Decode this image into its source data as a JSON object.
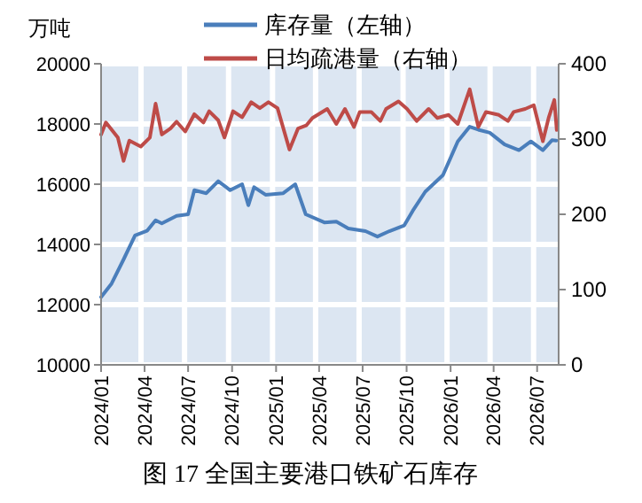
{
  "chart_data": {
    "type": "line",
    "title": "图 17 全国主要港口铁矿石库存",
    "ylabel": "万吨",
    "legend": "top",
    "grid": true,
    "xlim": [
      "2024-01-01",
      "2026-08-15"
    ],
    "xticks": [
      {
        "value": "2024-01",
        "label": "2024/01"
      },
      {
        "value": "2024-04",
        "label": "2024/04"
      },
      {
        "value": "2024-07",
        "label": "2024/07"
      },
      {
        "value": "2024-10",
        "label": "2024/10"
      },
      {
        "value": "2025-01",
        "label": "2025/01"
      },
      {
        "value": "2025-04",
        "label": "2025/04"
      },
      {
        "value": "2025-07",
        "label": "2025/07"
      },
      {
        "value": "2025-10",
        "label": "2025/10"
      },
      {
        "value": "2026-01",
        "label": "2026/01"
      },
      {
        "value": "2026-04",
        "label": "2026/04"
      },
      {
        "value": "2026-07",
        "label": "2026/07"
      }
    ],
    "ylim": [
      10000,
      20000
    ],
    "yticks": [
      10000,
      12000,
      14000,
      16000,
      18000,
      20000
    ],
    "y2lim": [
      0,
      400
    ],
    "y2ticks": [
      0,
      100,
      200,
      300,
      400
    ],
    "series": [
      {
        "name": "库存量（左轴）",
        "color": "#4a7ebb",
        "x": [
          "2024-01-01",
          "2024-01-23",
          "2024-02-17",
          "2024-03-12",
          "2024-04-06",
          "2024-04-24",
          "2024-05-07",
          "2024-06-07",
          "2024-07-01",
          "2024-07-14",
          "2024-08-08",
          "2024-09-02",
          "2024-09-27",
          "2024-10-22",
          "2024-11-04",
          "2024-11-16",
          "2024-12-10",
          "2025-01-16",
          "2025-02-10",
          "2025-03-04",
          "2025-04-12",
          "2025-05-07",
          "2025-06-01",
          "2025-07-07",
          "2025-08-01",
          "2025-08-26",
          "2025-09-26",
          "2025-10-14",
          "2025-11-09",
          "2025-12-16",
          "2026-01-16",
          "2026-02-10",
          "2026-02-28",
          "2026-03-24",
          "2026-04-24",
          "2026-05-24",
          "2026-06-18",
          "2026-07-13",
          "2026-08-01",
          "2026-08-10"
        ],
        "values": [
          12250,
          12700,
          13500,
          14300,
          14450,
          14800,
          14700,
          14950,
          15000,
          15800,
          15700,
          16100,
          15800,
          16000,
          15300,
          15900,
          15650,
          15700,
          16000,
          15000,
          14730,
          14760,
          14530,
          14440,
          14260,
          14440,
          14630,
          15120,
          15750,
          16300,
          17420,
          17910,
          17810,
          17710,
          17320,
          17130,
          17420,
          17130,
          17460,
          17450
        ]
      },
      {
        "name": "日均疏港量（右轴）",
        "color": "#be4b48",
        "axis": "y2",
        "x": [
          "2024-01-01",
          "2024-01-11",
          "2024-02-05",
          "2024-02-17",
          "2024-02-29",
          "2024-03-24",
          "2024-04-12",
          "2024-04-24",
          "2024-05-07",
          "2024-05-25",
          "2024-06-07",
          "2024-06-25",
          "2024-07-14",
          "2024-08-02",
          "2024-08-14",
          "2024-09-02",
          "2024-09-15",
          "2024-10-03",
          "2024-10-22",
          "2024-11-10",
          "2024-11-28",
          "2024-12-16",
          "2025-01-04",
          "2025-01-29",
          "2025-02-16",
          "2025-03-05",
          "2025-03-18",
          "2025-04-18",
          "2025-05-07",
          "2025-05-25",
          "2025-06-13",
          "2025-06-25",
          "2025-07-19",
          "2025-08-07",
          "2025-08-19",
          "2025-09-14",
          "2025-10-02",
          "2025-10-22",
          "2025-11-16",
          "2025-12-04",
          "2025-12-28",
          "2026-01-16",
          "2026-02-10",
          "2026-02-28",
          "2026-03-16",
          "2026-04-12",
          "2026-05-01",
          "2026-05-13",
          "2026-06-06",
          "2026-06-24",
          "2026-07-13",
          "2026-07-25",
          "2026-08-06",
          "2026-08-11"
        ],
        "values": [
          306,
          322,
          302,
          271,
          298,
          290,
          302,
          347,
          306,
          314,
          323,
          310,
          333,
          322,
          337,
          325,
          302,
          337,
          329,
          349,
          341,
          349,
          341,
          286,
          314,
          318,
          328,
          340,
          320,
          340,
          316,
          336,
          336,
          324,
          340,
          350,
          340,
          324,
          340,
          328,
          332,
          320,
          366,
          316,
          336,
          332,
          324,
          336,
          340,
          345,
          297,
          328,
          352,
          312
        ]
      }
    ]
  }
}
